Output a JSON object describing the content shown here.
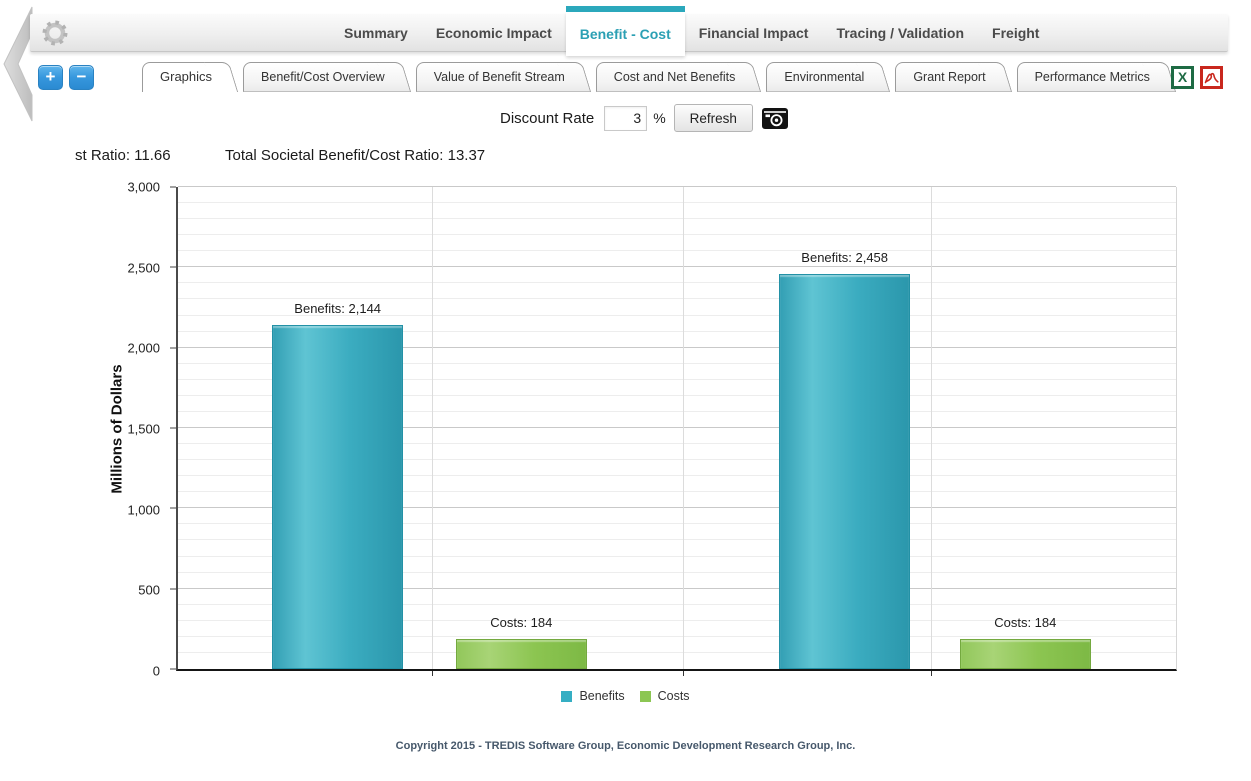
{
  "header": {
    "accent_color": "#2BA8BC",
    "nav_items": [
      {
        "label": "Summary",
        "active": false
      },
      {
        "label": "Economic Impact",
        "active": false
      },
      {
        "label": "Benefit - Cost",
        "active": true
      },
      {
        "label": "Financial Impact",
        "active": false
      },
      {
        "label": "Tracing / Validation",
        "active": false
      },
      {
        "label": "Freight",
        "active": false
      }
    ]
  },
  "toolbar": {
    "zoom_in_label": "+",
    "zoom_out_label": "−",
    "excel_label": "X",
    "icons": [
      "gear-icon",
      "collapse-arrow-icon",
      "excel-export-icon",
      "pdf-export-icon",
      "camera-icon"
    ]
  },
  "subtabs": [
    {
      "label": "Graphics",
      "active": true
    },
    {
      "label": "Benefit/Cost Overview",
      "active": false
    },
    {
      "label": "Value of Benefit Stream",
      "active": false
    },
    {
      "label": "Cost and Net Benefits",
      "active": false
    },
    {
      "label": "Environmental",
      "active": false
    },
    {
      "label": "Grant Report",
      "active": false
    },
    {
      "label": "Performance Metrics",
      "active": false
    }
  ],
  "controls": {
    "discount_rate_label": "Discount Rate",
    "discount_rate_value": "3",
    "percent_sign": "%",
    "refresh_label": "Refresh"
  },
  "ratios": {
    "left_clipped_text": "st Ratio: 11.66",
    "total_societal_text": "Total Societal Benefit/Cost Ratio: 13.37"
  },
  "chart_data": {
    "type": "bar",
    "ylabel": "Millions of Dollars",
    "ylim": [
      0,
      3000
    ],
    "y_major_step": 500,
    "y_minor_step": 100,
    "yticks": [
      "0",
      "500",
      "1,000",
      "1,500",
      "2,000",
      "2,500",
      "3,000"
    ],
    "grid": true,
    "vgrid_pct": [
      25.5,
      50.6,
      75.5
    ],
    "bar_width_pct": 13.1,
    "legend_position": "bottom",
    "series": [
      {
        "name": "Benefits",
        "color": "#35AEC3",
        "border_color": "#2391A6",
        "gradient": [
          "#339FB4",
          "#5FC4D3",
          "#3BACC0",
          "#2B97AC"
        ],
        "values": [
          2144,
          2458
        ]
      },
      {
        "name": "Costs",
        "color": "#8CC653",
        "border_color": "#74A93F",
        "gradient": [
          "#92C75B",
          "#A8D476",
          "#8CC551",
          "#7DB945"
        ],
        "values": [
          184,
          184
        ]
      }
    ],
    "bars": [
      {
        "series": "Benefits",
        "value": 2144,
        "label": "Benefits: 2,144",
        "center_pct": 16.0
      },
      {
        "series": "Costs",
        "value": 184,
        "label": "Costs: 184",
        "center_pct": 34.4
      },
      {
        "series": "Benefits",
        "value": 2458,
        "label": "Benefits: 2,458",
        "center_pct": 66.8
      },
      {
        "series": "Costs",
        "value": 184,
        "label": "Costs: 184",
        "center_pct": 84.9
      }
    ]
  },
  "footer": {
    "copyright": "Copyright 2015 - TREDIS Software Group, Economic Development Research Group, Inc."
  }
}
